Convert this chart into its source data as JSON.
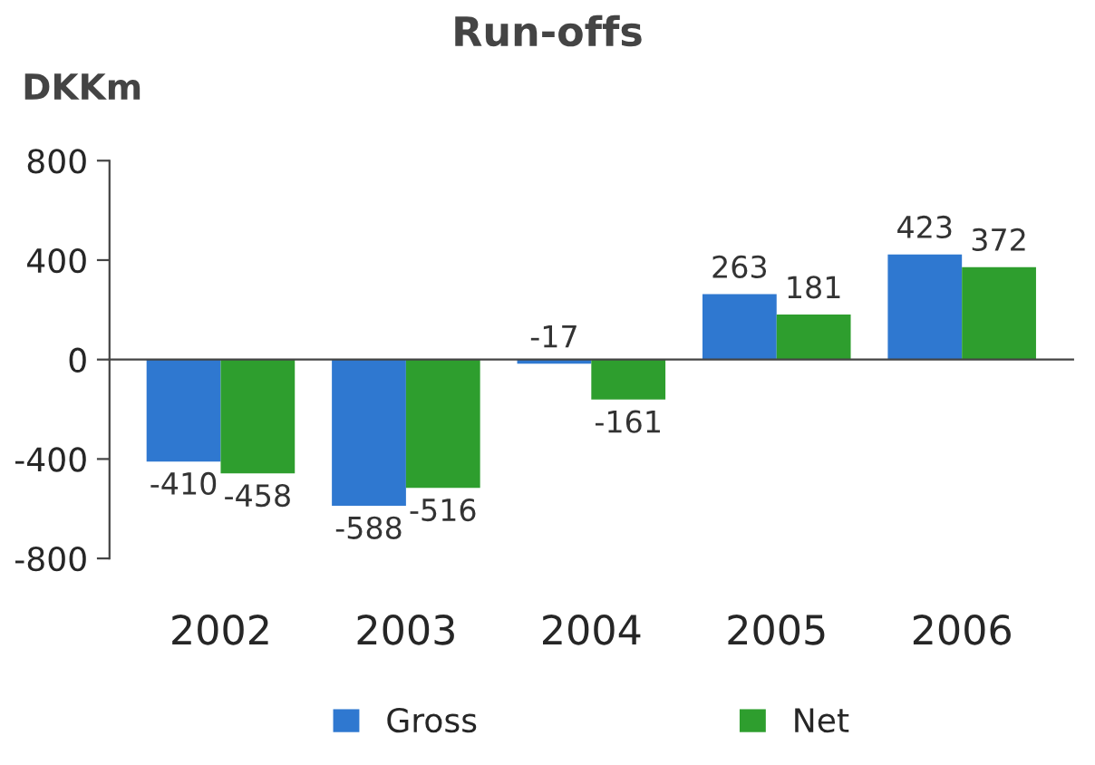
{
  "chart_data": {
    "type": "bar",
    "title": "Run-offs",
    "ylabel": "DKKm",
    "categories": [
      "2002",
      "2003",
      "2004",
      "2005",
      "2006"
    ],
    "series": [
      {
        "name": "Gross",
        "color": "#2f78d0",
        "values": [
          -410,
          -588,
          -17,
          263,
          423
        ]
      },
      {
        "name": "Net",
        "color": "#2e9e2e",
        "values": [
          -458,
          -516,
          -161,
          181,
          372
        ]
      }
    ],
    "ylim": [
      -800,
      800
    ],
    "yticks": [
      -800,
      -400,
      0,
      400,
      800
    ],
    "legend": "bottom",
    "data_labels": true
  }
}
